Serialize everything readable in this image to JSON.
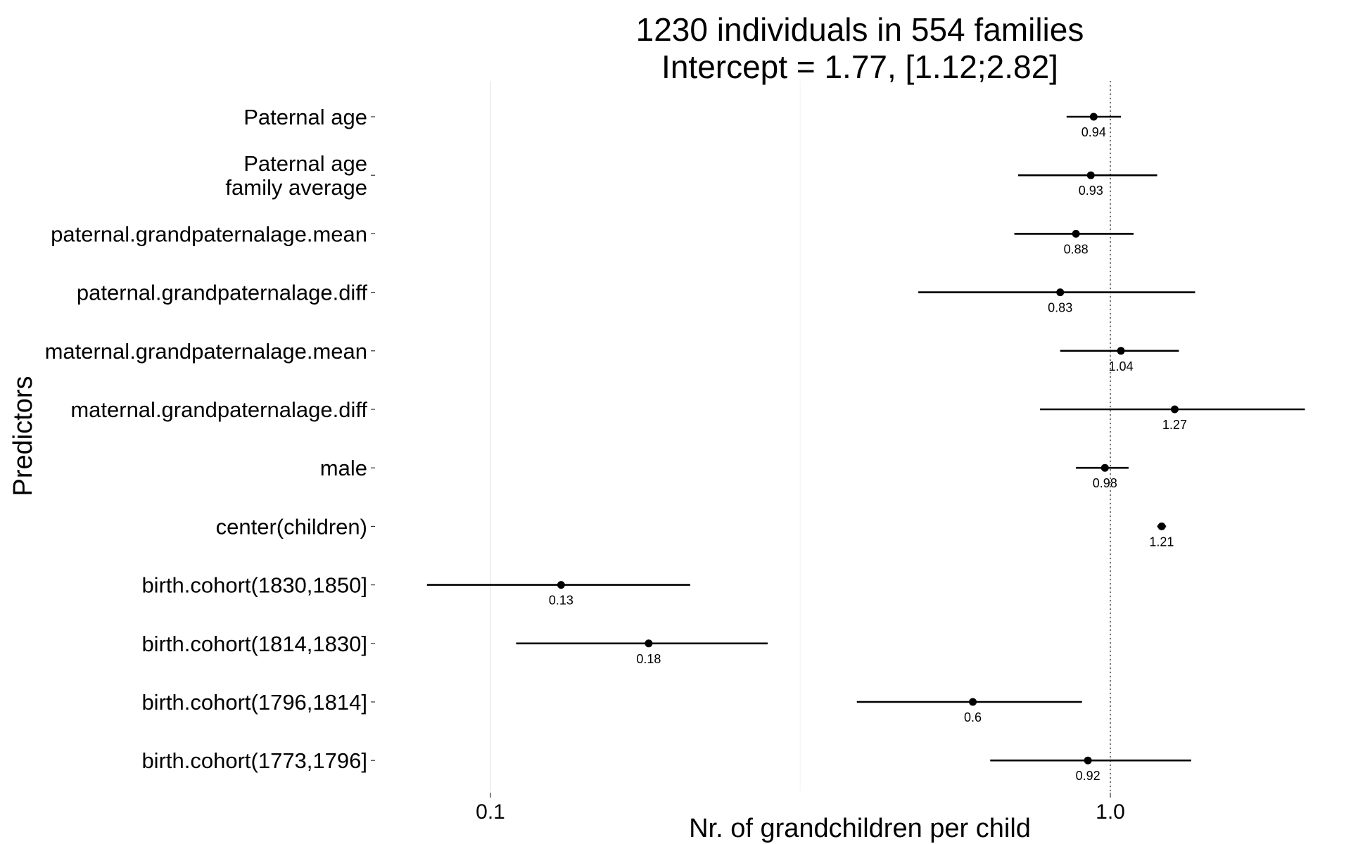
{
  "chart_data": {
    "type": "forest",
    "title": [
      "1230 individuals in 554 families",
      "Intercept = 1.77, [1.12;2.82]"
    ],
    "xlabel": "Nr. of grandchildren per child",
    "ylabel": "Predictors",
    "x_scale": "log10",
    "xlim": [
      0.074,
      1.68
    ],
    "x_ticks": [
      {
        "value": 0.1,
        "label": "0.1"
      },
      {
        "value": 1.0,
        "label": "1.0"
      }
    ],
    "minor_grid": [
      0.316
    ],
    "reference_line": 1.0,
    "colors": {
      "point": "#000000",
      "reference_line": "#555555",
      "grid": "#ebebeb"
    },
    "rows": [
      {
        "label": [
          "Paternal age"
        ],
        "estimate": 0.94,
        "lower": 0.85,
        "upper": 1.04,
        "value_label": "0.94"
      },
      {
        "label": [
          "Paternal age",
          "family average"
        ],
        "estimate": 0.93,
        "lower": 0.71,
        "upper": 1.19,
        "value_label": "0.93"
      },
      {
        "label": [
          "paternal.grandpaternalage.mean"
        ],
        "estimate": 0.88,
        "lower": 0.7,
        "upper": 1.09,
        "value_label": "0.88"
      },
      {
        "label": [
          "paternal.grandpaternalage.diff"
        ],
        "estimate": 0.83,
        "lower": 0.49,
        "upper": 1.37,
        "value_label": "0.83"
      },
      {
        "label": [
          "maternal.grandpaternalage.mean"
        ],
        "estimate": 1.04,
        "lower": 0.83,
        "upper": 1.29,
        "value_label": "1.04"
      },
      {
        "label": [
          "maternal.grandpaternalage.diff"
        ],
        "estimate": 1.27,
        "lower": 0.77,
        "upper": 2.06,
        "value_label": "1.27"
      },
      {
        "label": [
          "male"
        ],
        "estimate": 0.98,
        "lower": 0.88,
        "upper": 1.07,
        "value_label": "0.98"
      },
      {
        "label": [
          "center(children)"
        ],
        "estimate": 1.21,
        "lower": 1.19,
        "upper": 1.23,
        "value_label": "1.21"
      },
      {
        "label": [
          "birth.cohort(1830,1850]"
        ],
        "estimate": 0.13,
        "lower": 0.079,
        "upper": 0.21,
        "value_label": "0.13"
      },
      {
        "label": [
          "birth.cohort(1814,1830]"
        ],
        "estimate": 0.18,
        "lower": 0.11,
        "upper": 0.28,
        "value_label": "0.18"
      },
      {
        "label": [
          "birth.cohort(1796,1814]"
        ],
        "estimate": 0.6,
        "lower": 0.39,
        "upper": 0.9,
        "value_label": "0.6"
      },
      {
        "label": [
          "birth.cohort(1773,1796]"
        ],
        "estimate": 0.92,
        "lower": 0.64,
        "upper": 1.35,
        "value_label": "0.92"
      }
    ]
  }
}
